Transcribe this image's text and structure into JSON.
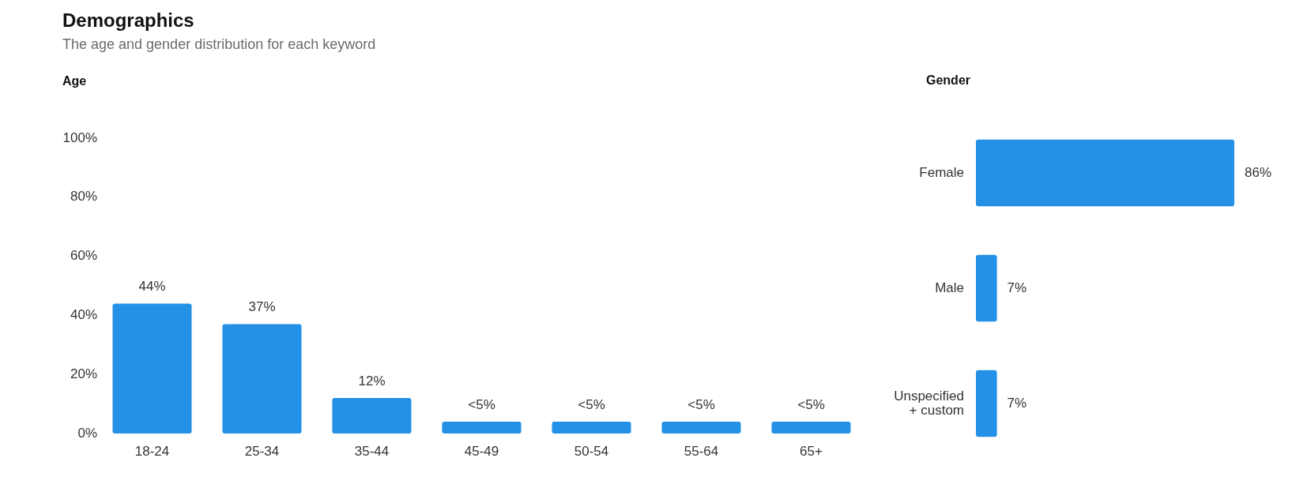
{
  "chart_data": [
    {
      "type": "other",
      "title": "Demographics",
      "subtitle": "The age and gender distribution for each keyword"
    },
    {
      "type": "bar",
      "title": "Age",
      "categories": [
        "18-24",
        "25-34",
        "35-44",
        "45-49",
        "50-54",
        "55-64",
        "65+"
      ],
      "values": [
        44,
        37,
        12,
        4,
        4,
        4,
        4
      ],
      "value_labels": [
        "44%",
        "37%",
        "12%",
        "<5%",
        "<5%",
        "<5%",
        "<5%"
      ],
      "color": "#2491e6",
      "ylim": [
        0,
        100
      ],
      "yticks": [
        {
          "value": 0,
          "label": "0%"
        },
        {
          "value": 20,
          "label": "20%"
        },
        {
          "value": 40,
          "label": "40%"
        },
        {
          "value": 60,
          "label": "60%"
        },
        {
          "value": 80,
          "label": "80%"
        },
        {
          "value": 100,
          "label": "100%"
        }
      ]
    },
    {
      "type": "bar",
      "orientation": "horizontal",
      "title": "Gender",
      "categories": [
        "Female",
        "Male",
        "Unspecified + custom"
      ],
      "values": [
        86,
        7,
        7
      ],
      "value_labels": [
        "86%",
        "7%",
        "7%"
      ],
      "color": "#2491e6",
      "tick_labels": "y"
    }
  ]
}
